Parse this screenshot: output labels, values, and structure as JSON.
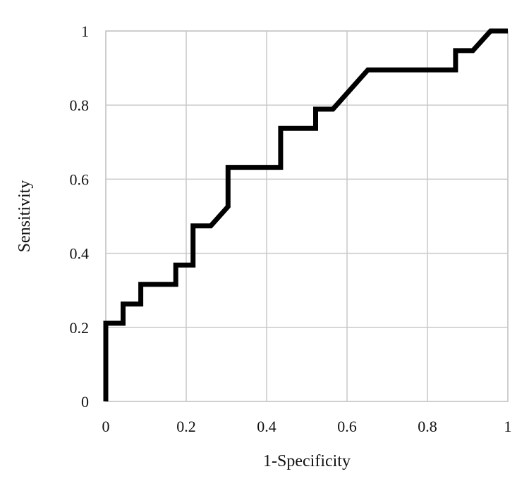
{
  "chart_data": {
    "type": "line",
    "title": "",
    "xlabel": "1-Specificity",
    "ylabel": "Sensitivity",
    "xlim": [
      0,
      1
    ],
    "ylim": [
      0,
      1
    ],
    "x_ticks": [
      "0",
      "0.2",
      "0.4",
      "0.6",
      "0.8",
      "1"
    ],
    "y_ticks": [
      "0",
      "0.2",
      "0.4",
      "0.6",
      "0.8",
      "1"
    ],
    "grid": true,
    "legend": "none",
    "line_color": "#000000",
    "series": [
      {
        "x": [
          0,
          0,
          0.043,
          0.043,
          0.087,
          0.087,
          0.174,
          0.174,
          0.217,
          0.217,
          0.261,
          0.304,
          0.304,
          0.435,
          0.435,
          0.522,
          0.522,
          0.565,
          0.652,
          0.87,
          0.87,
          0.913,
          0.957,
          1
        ],
        "y": [
          0,
          0.211,
          0.211,
          0.263,
          0.263,
          0.316,
          0.316,
          0.368,
          0.368,
          0.474,
          0.474,
          0.526,
          0.632,
          0.632,
          0.737,
          0.737,
          0.789,
          0.789,
          0.895,
          0.895,
          0.947,
          0.947,
          1,
          1
        ]
      }
    ]
  }
}
